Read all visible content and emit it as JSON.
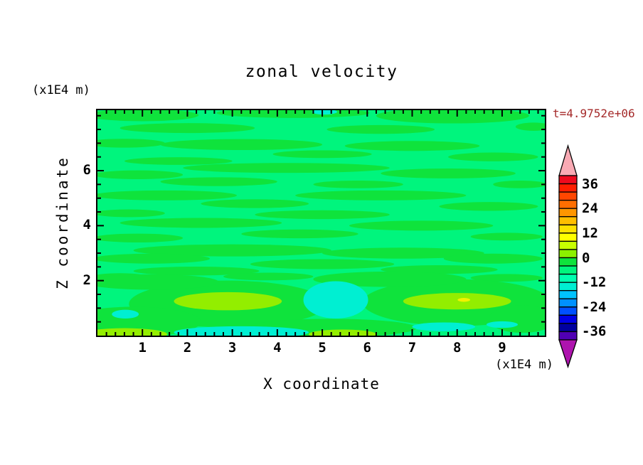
{
  "title": "zonal velocity",
  "y_axis_unit_label": "(x1E4 m)",
  "x_axis_unit_label": "(x1E4 m)",
  "time_label": "t=4.9752e+06",
  "x_axis": {
    "label": "X coordinate"
  },
  "z_axis": {
    "label": "Z coordinate"
  },
  "palette": {
    "background_fill": "#00F57D",
    "green": "#0FE33C",
    "chartreuse": "#93EE00",
    "cyan": "#00EFD2",
    "yellow": "#F2F200",
    "frame": "#000000",
    "time_label_color": "#A52A2A"
  },
  "colorbar": {
    "tick_labels": [
      "36",
      "24",
      "12",
      "0",
      "-12",
      "-24",
      "-36"
    ],
    "cell_colors": [
      "#EE0A1E",
      "#FF1E00",
      "#FF4600",
      "#FF6E00",
      "#FF9600",
      "#FFBE00",
      "#FFE100",
      "#FFFF00",
      "#C8FF00",
      "#8CF000",
      "#0FE33C",
      "#00F57D",
      "#00FFAF",
      "#00EFD2",
      "#00C3FF",
      "#0091FF",
      "#0050FF",
      "#0000E6",
      "#0000A0",
      "#5000B4"
    ],
    "over_arrow_color": "#F9AAB4",
    "under_arrow_color": "#AE14AE"
  },
  "chart_data": {
    "type": "filled_contour",
    "title": "zonal velocity",
    "xlabel": "X coordinate",
    "ylabel": "Z coordinate",
    "x_unit": "(x1E4 m)",
    "y_unit": "(x1E4 m)",
    "time_annotation": "t=4.9752e+06",
    "xlim": [
      0,
      9.95
    ],
    "ylim": [
      0,
      8.2
    ],
    "x_major_ticks": [
      1,
      2,
      3,
      4,
      5,
      6,
      7,
      8,
      9
    ],
    "x_minor_tick_step": 0.2,
    "y_major_ticks": [
      2,
      4,
      6
    ],
    "y_minor_tick_step": 0.5,
    "grid": false,
    "legend_position": "right-colorbar",
    "contour_interval": 4,
    "level_range": [
      -40,
      40
    ],
    "colorbar_labeled_levels": [
      36,
      24,
      12,
      0,
      -12,
      -24,
      -36
    ],
    "background_level_band": "-8..-4",
    "regions": {
      "green_level_band": "-4..0",
      "green": [
        [
          1.0,
          8.02,
          1.25,
          0.22
        ],
        [
          4.35,
          8.1,
          1.7,
          0.18
        ],
        [
          7.9,
          8.0,
          1.7,
          0.28
        ],
        [
          9.7,
          7.6,
          0.4,
          0.15
        ],
        [
          2.0,
          7.55,
          1.5,
          0.18
        ],
        [
          6.3,
          7.5,
          1.2,
          0.16
        ],
        [
          0.6,
          7.0,
          0.9,
          0.16
        ],
        [
          3.2,
          6.95,
          1.8,
          0.2
        ],
        [
          7.0,
          6.9,
          1.5,
          0.18
        ],
        [
          5.0,
          6.6,
          1.1,
          0.14
        ],
        [
          8.8,
          6.5,
          1.0,
          0.16
        ],
        [
          1.8,
          6.35,
          1.2,
          0.14
        ],
        [
          4.2,
          6.1,
          2.3,
          0.18
        ],
        [
          0.9,
          5.85,
          1.0,
          0.16
        ],
        [
          7.8,
          5.9,
          1.5,
          0.18
        ],
        [
          2.7,
          5.6,
          1.3,
          0.16
        ],
        [
          5.8,
          5.5,
          1.0,
          0.14
        ],
        [
          9.4,
          5.5,
          0.6,
          0.14
        ],
        [
          1.5,
          5.1,
          1.6,
          0.18
        ],
        [
          6.3,
          5.1,
          1.9,
          0.18
        ],
        [
          3.5,
          4.8,
          1.2,
          0.16
        ],
        [
          8.7,
          4.7,
          1.1,
          0.16
        ],
        [
          0.7,
          4.45,
          0.8,
          0.14
        ],
        [
          5.0,
          4.4,
          1.5,
          0.16
        ],
        [
          2.3,
          4.1,
          1.8,
          0.18
        ],
        [
          7.2,
          4.0,
          1.6,
          0.18
        ],
        [
          4.5,
          3.7,
          1.3,
          0.16
        ],
        [
          9.1,
          3.6,
          0.8,
          0.14
        ],
        [
          0.9,
          3.55,
          1.0,
          0.16
        ],
        [
          3.0,
          3.1,
          2.2,
          0.22
        ],
        [
          6.8,
          3.0,
          1.8,
          0.2
        ],
        [
          1.2,
          2.8,
          1.3,
          0.18
        ],
        [
          8.8,
          2.8,
          1.1,
          0.18
        ],
        [
          5.0,
          2.6,
          1.6,
          0.18
        ],
        [
          2.2,
          2.35,
          1.4,
          0.16
        ],
        [
          7.6,
          2.4,
          1.3,
          0.16
        ],
        [
          3.8,
          2.15,
          1.0,
          0.14
        ],
        [
          9.1,
          2.1,
          0.8,
          0.14
        ],
        [
          0.5,
          2.15,
          0.6,
          0.12
        ],
        [
          2.9,
          1.15,
          2.2,
          0.85
        ],
        [
          8.0,
          1.2,
          2.1,
          0.85
        ],
        [
          0.8,
          0.5,
          1.5,
          0.55
        ],
        [
          5.2,
          0.28,
          1.9,
          0.33
        ],
        [
          9.45,
          0.6,
          0.75,
          0.5
        ],
        [
          1.2,
          1.95,
          1.5,
          0.28
        ],
        [
          6.5,
          2.05,
          1.7,
          0.28
        ]
      ],
      "cyan_level_band": "-16..-8",
      "cyan": [
        [
          5.3,
          1.3,
          0.72,
          0.68
        ],
        [
          3.2,
          0.12,
          1.5,
          0.22
        ],
        [
          0.62,
          0.78,
          0.3,
          0.16
        ],
        [
          7.7,
          0.32,
          0.7,
          0.16
        ],
        [
          9.0,
          0.4,
          0.35,
          0.12
        ],
        [
          5.05,
          8.14,
          0.28,
          0.1
        ]
      ],
      "chartreuse_level_band": "0..8",
      "chartreuse": [
        [
          2.9,
          1.25,
          1.2,
          0.33
        ],
        [
          8.0,
          1.25,
          1.2,
          0.3
        ],
        [
          0.6,
          0.05,
          0.95,
          0.22
        ],
        [
          5.45,
          0.05,
          0.75,
          0.17
        ]
      ],
      "yellow_level_band": "8..12",
      "yellow": [
        [
          8.15,
          1.3,
          0.14,
          0.07
        ]
      ]
    }
  }
}
